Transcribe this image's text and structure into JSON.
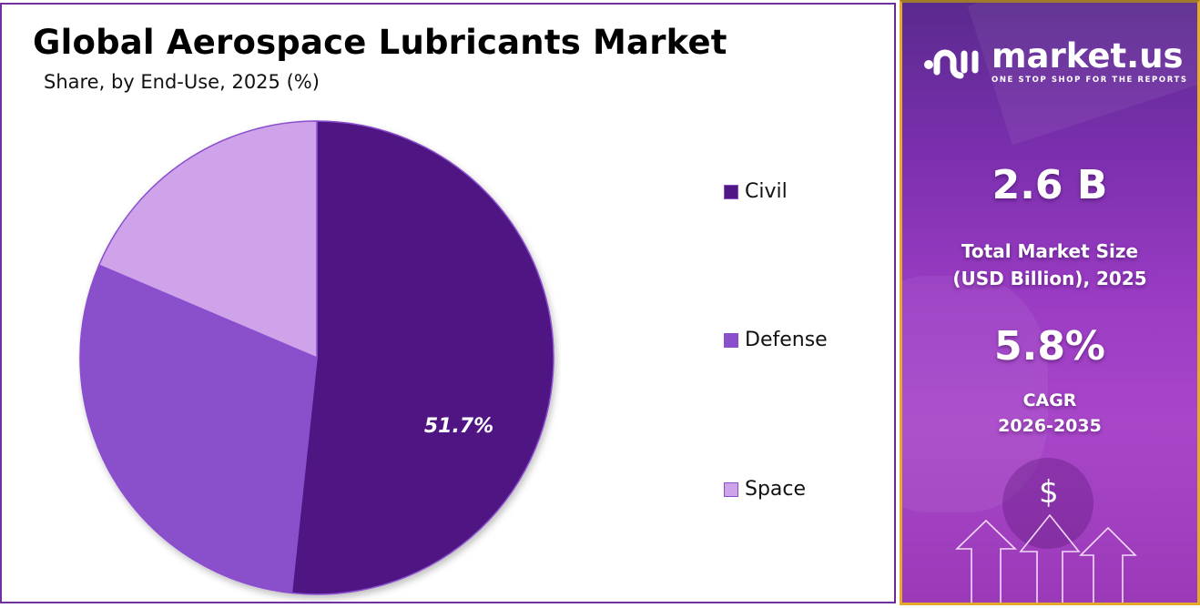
{
  "header": {
    "title": "Global Aerospace Lubricants Market",
    "subtitle": "Share, by End-Use, 2025 (%)"
  },
  "chart_data": {
    "type": "pie",
    "title": "Global Aerospace Lubricants Market",
    "subtitle": "Share, by End-Use, 2025 (%)",
    "categories": [
      "Civil",
      "Defense",
      "Space"
    ],
    "values": [
      51.7,
      29.7,
      18.6
    ],
    "colors": [
      "#4f1783",
      "#8a4fcb",
      "#cfa3ea"
    ],
    "data_labels": [
      "51.7%",
      "",
      ""
    ],
    "start_angle": "12 o'clock, clockwise",
    "legend_position": "right"
  },
  "legend": {
    "items": [
      {
        "label": "Civil",
        "color": "#4f1783"
      },
      {
        "label": "Defense",
        "color": "#8a4fcb"
      },
      {
        "label": "Space",
        "color": "#cfa3ea"
      }
    ]
  },
  "pie_label": "51.7%",
  "sidebar": {
    "brand": "market.us",
    "tagline": "ONE STOP SHOP FOR THE REPORTS",
    "market_size_value": "2.6 B",
    "market_size_label_1": "Total Market Size",
    "market_size_label_2": "(USD Billion), 2025",
    "cagr_value": "5.8%",
    "cagr_label": "CAGR",
    "cagr_period": "2026-2035",
    "dollar_icon": "$"
  }
}
